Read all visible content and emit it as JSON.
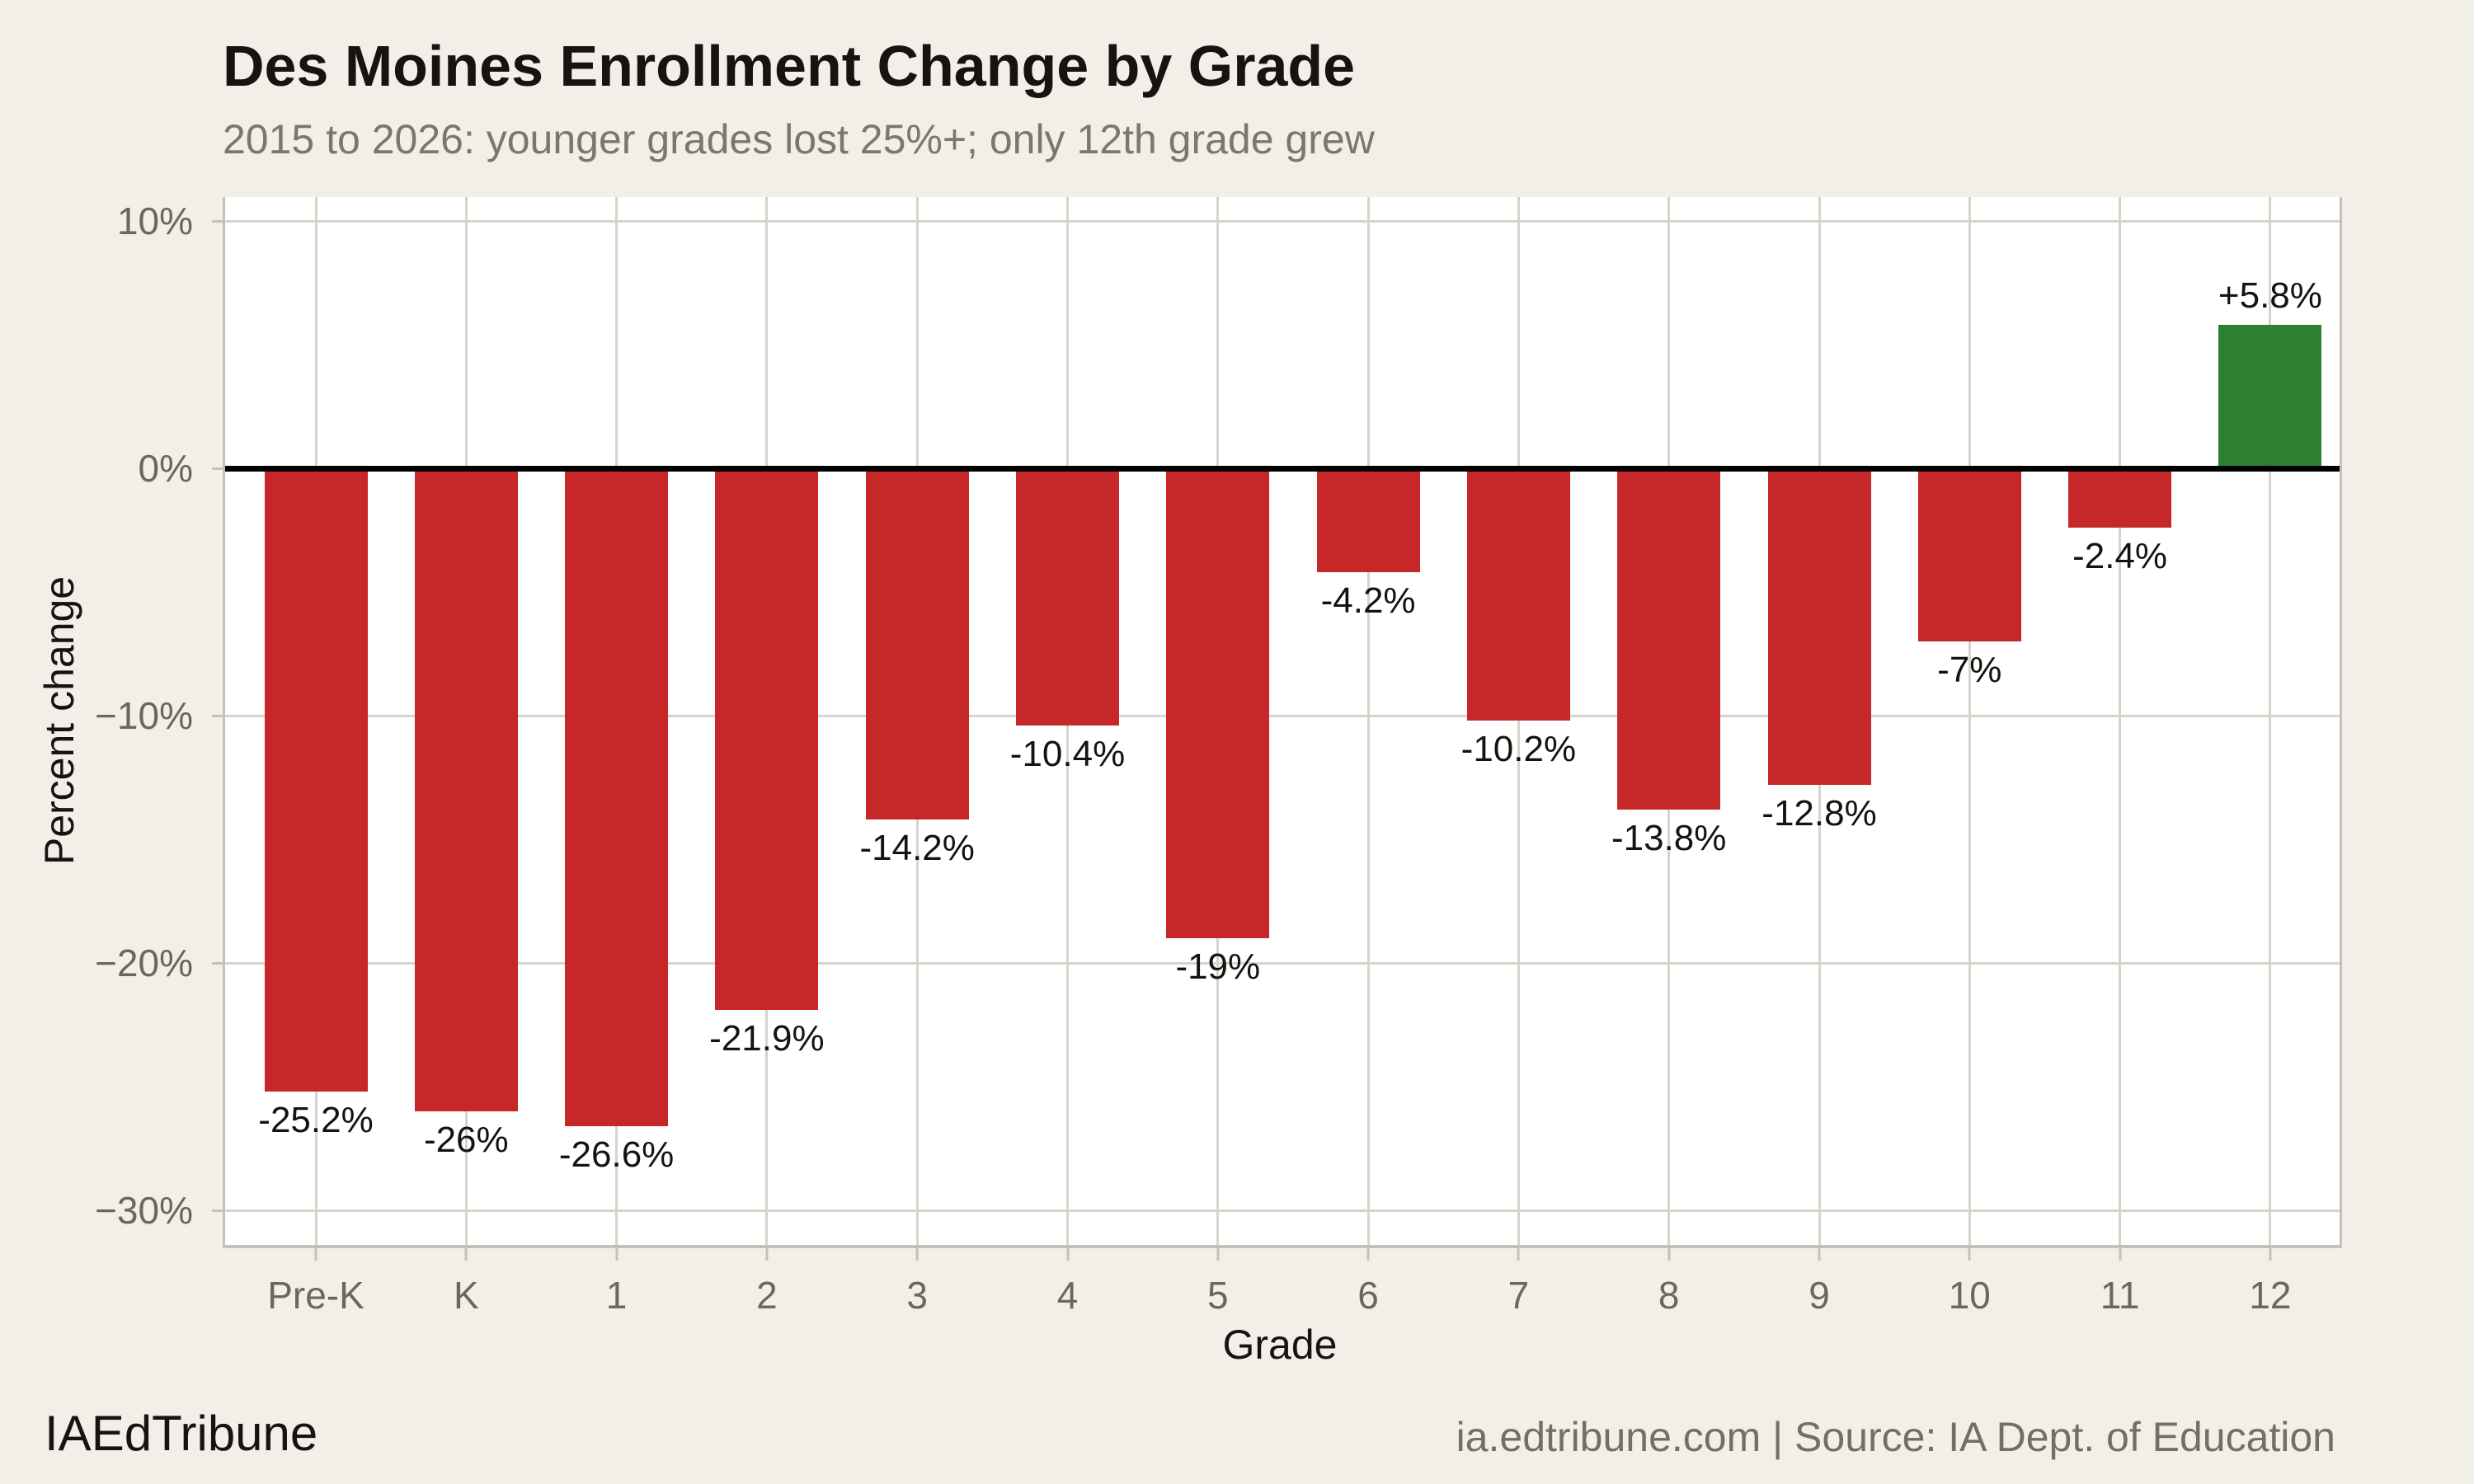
{
  "chart_data": {
    "type": "bar",
    "title": "Des Moines Enrollment Change by Grade",
    "subtitle": "2015 to 2026: younger grades lost 25%+; only 12th grade grew",
    "xlabel": "Grade",
    "ylabel": "Percent change",
    "categories": [
      "Pre-K",
      "K",
      "1",
      "2",
      "3",
      "4",
      "5",
      "6",
      "7",
      "8",
      "9",
      "10",
      "11",
      "12"
    ],
    "values": [
      -25.2,
      -26,
      -26.6,
      -21.9,
      -14.2,
      -10.4,
      -19,
      -4.2,
      -10.2,
      -13.8,
      -12.8,
      -7,
      -2.4,
      5.8
    ],
    "bar_labels": [
      "-25.2%",
      "-26%",
      "-26.6%",
      "-21.9%",
      "-14.2%",
      "-10.4%",
      "-19%",
      "-4.2%",
      "-10.2%",
      "-13.8%",
      "-12.8%",
      "-7%",
      "-2.4%",
      "+5.8%"
    ],
    "y_ticks": [
      {
        "value": 10,
        "label": "10%"
      },
      {
        "value": 0,
        "label": "0%"
      },
      {
        "value": -10,
        "label": "−10%"
      },
      {
        "value": -20,
        "label": "−20%"
      },
      {
        "value": -30,
        "label": "−30%"
      }
    ],
    "ylim": [
      -31.4,
      11
    ],
    "grid": true,
    "legend": "none",
    "colors": {
      "negative_bar": "#c62829",
      "positive_bar": "#2d7f32",
      "zero_line": "#000000",
      "gridline": "#d8d3ca",
      "panel_frame": "#c6c1b8",
      "panel_bg": "#ffffff",
      "page_bg": "#f2efe9",
      "axis_text": "#6b6760",
      "label_text": "#151310",
      "title_text": "#17140f",
      "subtitle_text": "#7b766e"
    }
  },
  "footer": {
    "left": "IAEdTribune",
    "right": "ia.edtribune.com | Source: IA Dept. of Education"
  }
}
